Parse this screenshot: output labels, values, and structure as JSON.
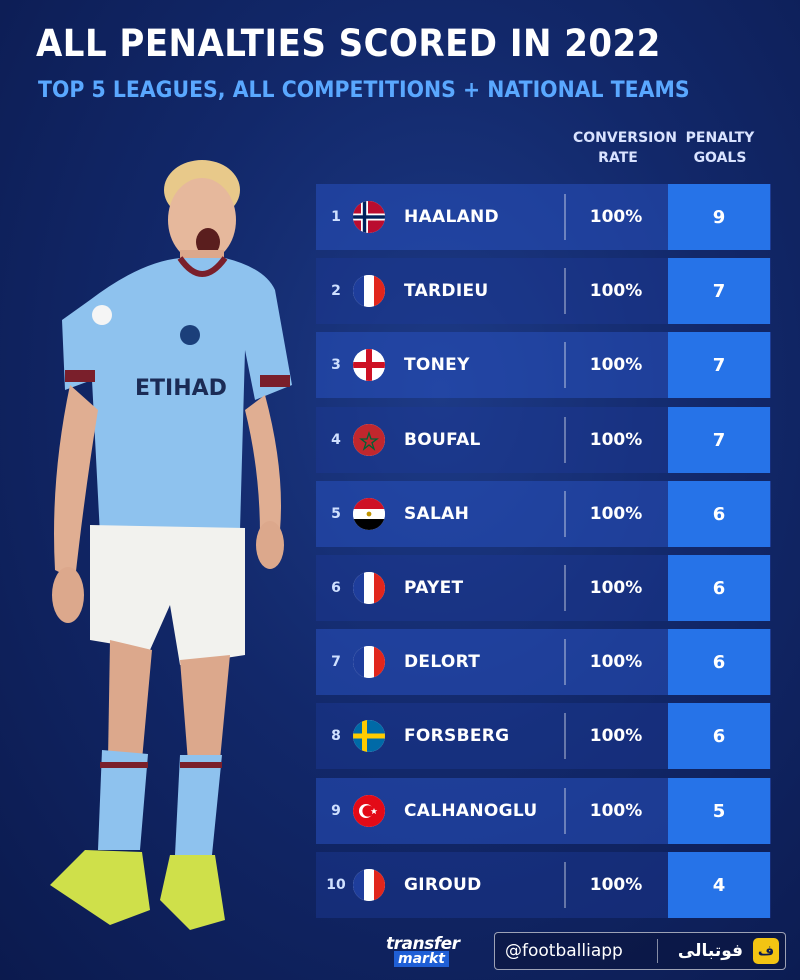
{
  "title": "ALL PENALTIES SCORED IN 2022",
  "subtitle": "TOP 5 LEAGUES, ALL COMPETITIONS + NATIONAL TEAMS",
  "columns": {
    "rate": "CONVERSION RATE",
    "goals": "PENALTY GOALS"
  },
  "chart_data": {
    "type": "table",
    "title": "ALL PENALTIES SCORED IN 2022",
    "subtitle": "TOP 5 LEAGUES, ALL COMPETITIONS + NATIONAL TEAMS",
    "headers": [
      "CONVERSION RATE",
      "PENALTY GOALS"
    ],
    "rows": [
      {
        "rank": "1",
        "name": "HAALAND",
        "country": "norway",
        "rate": "100%",
        "goals": "9"
      },
      {
        "rank": "2",
        "name": "TARDIEU",
        "country": "france",
        "rate": "100%",
        "goals": "7"
      },
      {
        "rank": "3",
        "name": "TONEY",
        "country": "england",
        "rate": "100%",
        "goals": "7"
      },
      {
        "rank": "4",
        "name": "BOUFAL",
        "country": "morocco",
        "rate": "100%",
        "goals": "7"
      },
      {
        "rank": "5",
        "name": "SALAH",
        "country": "egypt",
        "rate": "100%",
        "goals": "6"
      },
      {
        "rank": "6",
        "name": "PAYET",
        "country": "france",
        "rate": "100%",
        "goals": "6"
      },
      {
        "rank": "7",
        "name": "DELORT",
        "country": "france",
        "rate": "100%",
        "goals": "6"
      },
      {
        "rank": "8",
        "name": "FORSBERG",
        "country": "sweden",
        "rate": "100%",
        "goals": "6"
      },
      {
        "rank": "9",
        "name": "CALHANOGLU",
        "country": "turkey",
        "rate": "100%",
        "goals": "5"
      },
      {
        "rank": "10",
        "name": "GIROUD",
        "country": "france",
        "rate": "100%",
        "goals": "4"
      }
    ]
  },
  "footer": {
    "logo_top": "transfer",
    "logo_bottom": "markt",
    "handle": "@footballiapp",
    "app_name": "فوتبالی",
    "app_icon": "ف"
  },
  "colors": {
    "accent": "#2673e8",
    "subtitle": "#5aa8ff",
    "background": "#12286a"
  },
  "images": {
    "player": "footballer-in-light-blue-kit-shouting"
  }
}
